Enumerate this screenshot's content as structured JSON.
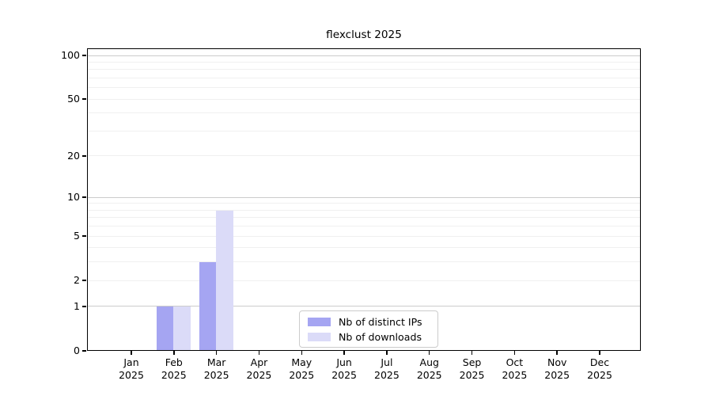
{
  "chart_data": {
    "type": "bar",
    "title": "flexclust 2025",
    "xlabel": "",
    "ylabel": "",
    "y_scale": "log1p",
    "grid": "on",
    "legend_position": "bottom-center-inside",
    "categories": [
      "Jan",
      "Feb",
      "Mar",
      "Apr",
      "May",
      "Jun",
      "Jul",
      "Aug",
      "Sep",
      "Oct",
      "Nov",
      "Dec"
    ],
    "category_year": "2025",
    "series": [
      {
        "name": "Nb of distinct IPs",
        "color": "#a5a5f2",
        "values": [
          0,
          1,
          3,
          0,
          0,
          0,
          0,
          0,
          0,
          0,
          0,
          0
        ]
      },
      {
        "name": "Nb of downloads",
        "color": "#dbdbf8",
        "values": [
          0,
          1,
          8,
          0,
          0,
          0,
          0,
          0,
          0,
          0,
          0,
          0
        ]
      }
    ],
    "yticks": [
      0,
      1,
      2,
      5,
      10,
      20,
      50,
      100
    ],
    "minor_gridlines": [
      2,
      3,
      4,
      5,
      6,
      7,
      8,
      9,
      20,
      30,
      40,
      50,
      60,
      70,
      80,
      90
    ],
    "major_gridlines": [
      1,
      10,
      100
    ],
    "ylim": [
      0,
      112
    ],
    "colors": {
      "axis": "#000000",
      "major_grid": "#cccccc",
      "minor_grid": "#f0f0f0",
      "background": "#ffffff",
      "legend_border": "#cccccc"
    }
  }
}
